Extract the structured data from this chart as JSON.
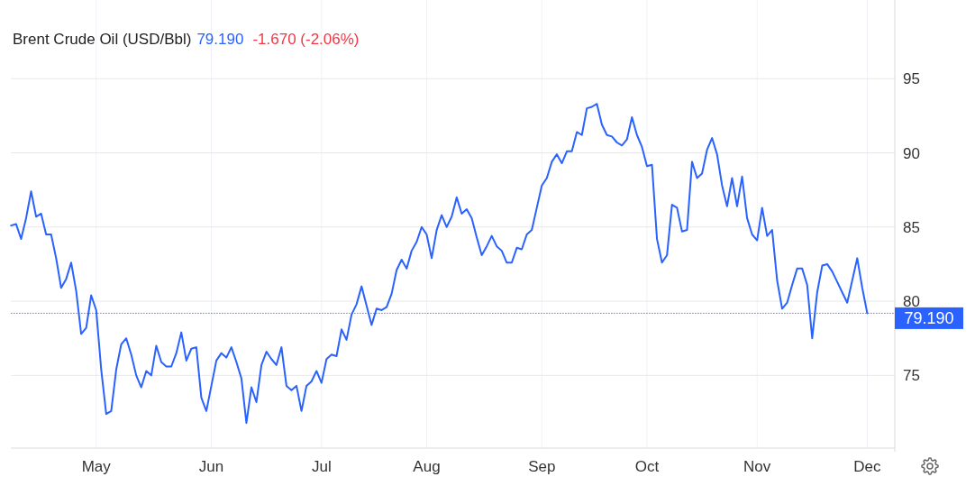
{
  "chart_data": {
    "type": "line",
    "title": "Brent Crude Oil (USD/Bbl)",
    "annotations": [
      "79.190",
      "-1.670 (-2.06%)"
    ],
    "categories": [
      null,
      null,
      null,
      null,
      null,
      null,
      null,
      null,
      null,
      null,
      null,
      null,
      null,
      null,
      null,
      null,
      null,
      "May",
      null,
      null,
      null,
      null,
      null,
      null,
      null,
      null,
      null,
      null,
      null,
      null,
      null,
      null,
      null,
      null,
      null,
      null,
      null,
      null,
      null,
      null,
      "Jun",
      null,
      null,
      null,
      null,
      null,
      null,
      null,
      null,
      null,
      null,
      null,
      null,
      null,
      null,
      null,
      null,
      null,
      null,
      null,
      null,
      null,
      "Jul",
      null,
      null,
      null,
      null,
      null,
      null,
      null,
      null,
      null,
      null,
      null,
      null,
      null,
      null,
      null,
      null,
      null,
      null,
      null,
      null,
      "Aug",
      null,
      null,
      null,
      null,
      null,
      null,
      null,
      null,
      null,
      null,
      null,
      null,
      null,
      null,
      null,
      null,
      null,
      null,
      null,
      null,
      null,
      null,
      "Sep",
      null,
      null,
      null,
      null,
      null,
      null,
      null,
      null,
      null,
      null,
      null,
      null,
      null,
      null,
      null,
      null,
      null,
      null,
      null,
      null,
      "Oct",
      null,
      null,
      null,
      null,
      null,
      null,
      null,
      null,
      null,
      null,
      null,
      null,
      null,
      null,
      null,
      null,
      null,
      null,
      null,
      null,
      null,
      "Nov",
      null,
      null,
      null,
      null,
      null,
      null,
      null,
      null,
      null,
      null,
      null,
      null,
      null,
      null,
      null,
      null,
      null,
      null,
      null,
      null,
      null,
      "Dec"
    ],
    "values": [
      85.1,
      85.2,
      84.2,
      85.6,
      87.4,
      85.7,
      85.9,
      84.5,
      84.5,
      82.9,
      80.9,
      81.5,
      82.6,
      80.7,
      77.8,
      78.2,
      80.4,
      79.4,
      75.4,
      72.4,
      72.6,
      75.4,
      77.1,
      77.5,
      76.4,
      75.0,
      74.2,
      75.3,
      75.0,
      77.0,
      75.9,
      75.6,
      75.6,
      76.5,
      77.9,
      76.0,
      76.8,
      76.9,
      73.5,
      72.6,
      74.3,
      76.0,
      76.5,
      76.2,
      76.9,
      75.9,
      74.8,
      71.8,
      74.2,
      73.2,
      75.7,
      76.6,
      76.1,
      75.7,
      76.9,
      74.3,
      74.0,
      74.3,
      72.6,
      74.3,
      74.6,
      75.3,
      74.5,
      76.1,
      76.4,
      76.3,
      78.1,
      77.4,
      79.1,
      79.8,
      81.0,
      79.7,
      78.4,
      79.5,
      79.4,
      79.6,
      80.5,
      82.1,
      82.8,
      82.2,
      83.4,
      84.0,
      85.0,
      84.5,
      82.9,
      84.8,
      85.8,
      85.0,
      85.7,
      87.0,
      85.9,
      86.2,
      85.6,
      84.3,
      83.1,
      83.7,
      84.4,
      83.7,
      83.4,
      82.6,
      82.6,
      83.6,
      83.5,
      84.5,
      84.8,
      86.3,
      87.8,
      88.3,
      89.4,
      89.9,
      89.3,
      90.1,
      90.1,
      91.4,
      91.2,
      93.0,
      93.1,
      93.3,
      91.9,
      91.2,
      91.1,
      90.7,
      90.5,
      90.9,
      92.4,
      91.2,
      90.4,
      89.1,
      89.2,
      84.2,
      82.6,
      83.1,
      86.5,
      86.3,
      84.7,
      84.8,
      89.4,
      88.3,
      88.6,
      90.2,
      91.0,
      89.9,
      87.8,
      86.4,
      88.3,
      86.4,
      88.4,
      85.6,
      84.5,
      84.1,
      86.3,
      84.4,
      84.8,
      81.4,
      79.5,
      79.9,
      81.1,
      82.2,
      82.2,
      81.1,
      77.5,
      80.6,
      82.4,
      82.5,
      82.0,
      81.3,
      80.6,
      79.9,
      81.4,
      82.9,
      80.9,
      79.19
    ],
    "color": "#2962ff",
    "ylim": [
      70.1,
      100.3
    ],
    "yticks": [
      75,
      80,
      85,
      90,
      95
    ],
    "grid": true,
    "ref_lines": [
      {
        "axis": "y",
        "value": 79.19,
        "label": "79.190",
        "color": "#2962ff",
        "line_style": "dotted"
      }
    ]
  }
}
